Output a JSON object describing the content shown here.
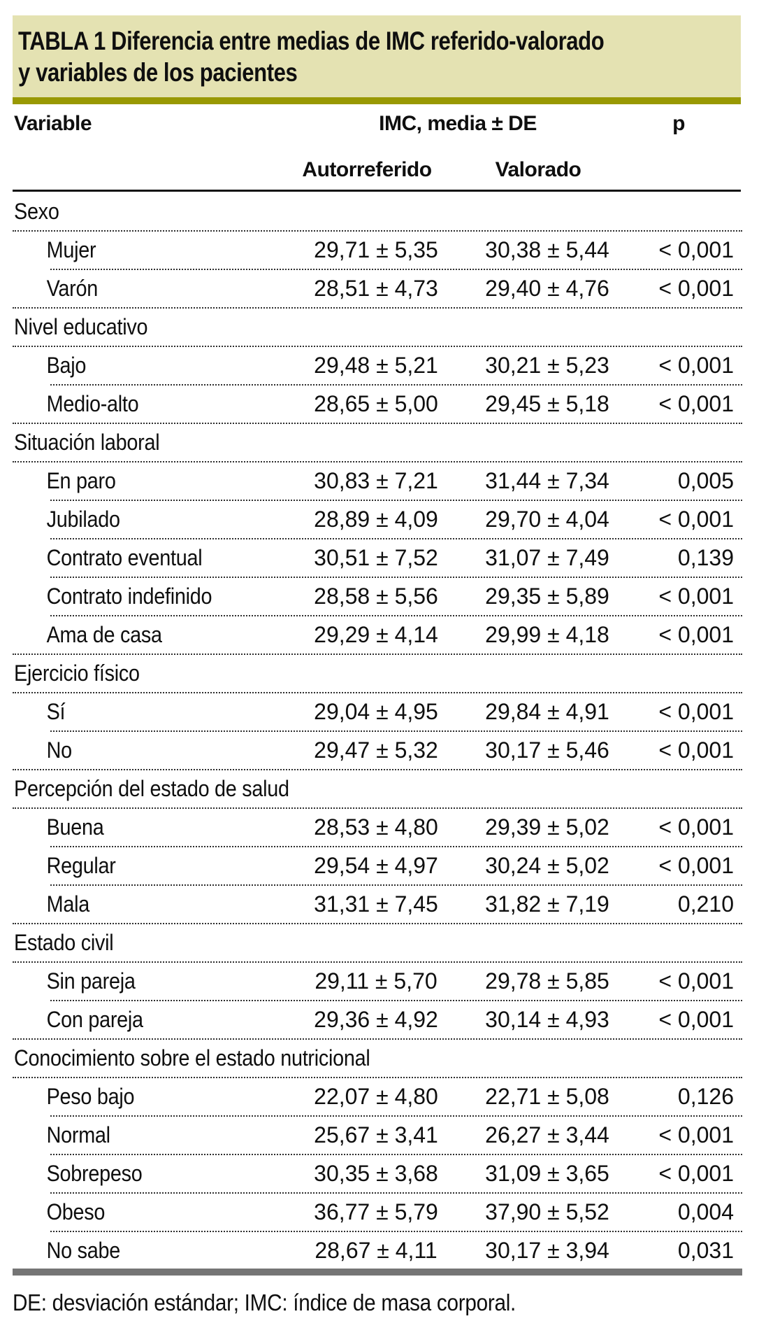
{
  "page": {
    "title_line1": "TABLA 1 Diferencia entre medias de IMC referido-valorado",
    "title_line2": "y variables de los pacientes",
    "footnote": "DE: desviación estándar; IMC: índice de masa corporal."
  },
  "columns": {
    "variable": "Variable",
    "imc_group": "IMC, media ± DE",
    "p": "p",
    "autorreferido": "Autorreferido",
    "valorado": "Valorado"
  },
  "groups": [
    {
      "label": "Sexo",
      "rows": [
        {
          "label": "Mujer",
          "autorreferido": "29,71 ± 5,35",
          "valorado": "30,38 ± 5,44",
          "p": "< 0,001"
        },
        {
          "label": "Varón",
          "autorreferido": "28,51 ± 4,73",
          "valorado": "29,40 ± 4,76",
          "p": "< 0,001"
        }
      ]
    },
    {
      "label": "Nivel educativo",
      "rows": [
        {
          "label": "Bajo",
          "autorreferido": "29,48 ± 5,21",
          "valorado": "30,21 ± 5,23",
          "p": "< 0,001"
        },
        {
          "label": "Medio-alto",
          "autorreferido": "28,65 ± 5,00",
          "valorado": "29,45 ± 5,18",
          "p": "< 0,001"
        }
      ]
    },
    {
      "label": "Situación laboral",
      "rows": [
        {
          "label": "En paro",
          "autorreferido": "30,83 ± 7,21",
          "valorado": "31,44 ± 7,34",
          "p": "0,005"
        },
        {
          "label": "Jubilado",
          "autorreferido": "28,89 ± 4,09",
          "valorado": "29,70 ± 4,04",
          "p": "< 0,001"
        },
        {
          "label": "Contrato eventual",
          "autorreferido": "30,51 ± 7,52",
          "valorado": "31,07 ± 7,49",
          "p": "0,139"
        },
        {
          "label": "Contrato indefinido",
          "autorreferido": "28,58 ± 5,56",
          "valorado": "29,35 ± 5,89",
          "p": "< 0,001"
        },
        {
          "label": "Ama de casa",
          "autorreferido": "29,29 ± 4,14",
          "valorado": "29,99 ± 4,18",
          "p": "< 0,001"
        }
      ]
    },
    {
      "label": "Ejercicio físico",
      "rows": [
        {
          "label": "Sí",
          "autorreferido": "29,04 ± 4,95",
          "valorado": "29,84 ± 4,91",
          "p": "< 0,001"
        },
        {
          "label": "No",
          "autorreferido": "29,47 ± 5,32",
          "valorado": "30,17 ± 5,46",
          "p": "< 0,001"
        }
      ]
    },
    {
      "label": "Percepción del estado de salud",
      "rows": [
        {
          "label": "Buena",
          "autorreferido": "28,53 ± 4,80",
          "valorado": "29,39 ± 5,02",
          "p": "< 0,001"
        },
        {
          "label": "Regular",
          "autorreferido": "29,54 ± 4,97",
          "valorado": "30,24 ± 5,02",
          "p": "< 0,001"
        },
        {
          "label": "Mala",
          "autorreferido": "31,31 ± 7,45",
          "valorado": "31,82 ± 7,19",
          "p": "0,210"
        }
      ]
    },
    {
      "label": "Estado civil",
      "rows": [
        {
          "label": "Sin pareja",
          "autorreferido": "29,11 ± 5,70",
          "valorado": "29,78 ± 5,85",
          "p": "< 0,001"
        },
        {
          "label": "Con pareja",
          "autorreferido": "29,36 ± 4,92",
          "valorado": "30,14 ± 4,93",
          "p": "< 0,001"
        }
      ]
    },
    {
      "label": "Conocimiento sobre el estado nutricional",
      "rows": [
        {
          "label": "Peso bajo",
          "autorreferido": "22,07 ± 4,80",
          "valorado": "22,71 ± 5,08",
          "p": "0,126"
        },
        {
          "label": "Normal",
          "autorreferido": "25,67 ± 3,41",
          "valorado": "26,27 ± 3,44",
          "p": "< 0,001"
        },
        {
          "label": "Sobrepeso",
          "autorreferido": "30,35 ± 3,68",
          "valorado": "31,09 ± 3,65",
          "p": "< 0,001"
        },
        {
          "label": "Obeso",
          "autorreferido": "36,77 ± 5,79",
          "valorado": "37,90 ± 5,52",
          "p": "0,004"
        },
        {
          "label": "No sabe",
          "autorreferido": "28,67 ± 4,11",
          "valorado": "30,17 ± 3,94",
          "p": "0,031"
        }
      ]
    }
  ],
  "colors": {
    "title_bg": "#e4e2b2",
    "title_underline": "#999902",
    "bottom_bar": "#757575"
  }
}
